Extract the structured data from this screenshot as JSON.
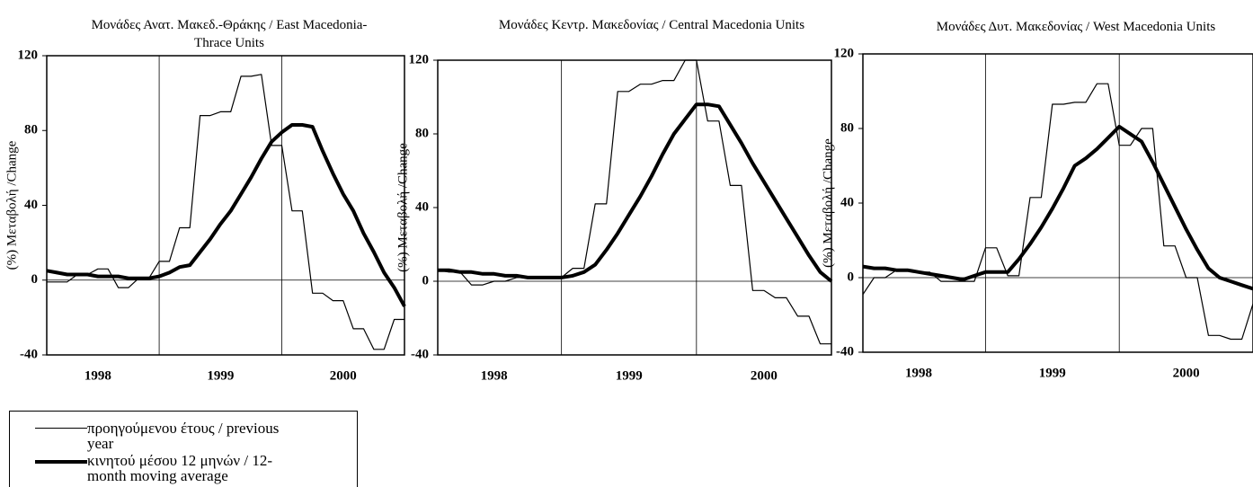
{
  "chart_data": [
    {
      "type": "line",
      "title": "Μονάδες Ανατ. Μακεδ.-Θράκης / East Macedonia-Thrace Units",
      "y_label": "(%) Μεταβολή /Change",
      "categories": [
        null,
        null,
        null,
        null,
        null,
        "1998",
        null,
        null,
        null,
        null,
        null,
        null,
        null,
        null,
        null,
        null,
        null,
        "1999",
        null,
        null,
        null,
        null,
        null,
        null,
        null,
        null,
        null,
        null,
        null,
        "2000",
        null,
        null,
        null,
        null,
        null,
        null
      ],
      "ylim": [
        -40,
        120
      ],
      "yticks": [
        -40,
        0,
        40,
        80,
        120
      ],
      "series": [
        {
          "name": "προηγούμενου έτους / previous year",
          "color": "#000000",
          "line_width": 1.2,
          "values": [
            -1,
            -1,
            -1,
            3,
            3,
            6,
            6,
            -4,
            -4,
            1,
            1,
            10,
            10,
            28,
            28,
            88,
            88,
            90,
            90,
            109,
            109,
            110,
            72,
            72,
            37,
            37,
            -7,
            -7,
            -11,
            -11,
            -26,
            -26,
            -37,
            -37,
            -21,
            -21
          ]
        },
        {
          "name": "κινητού μέσου 12 μηνών / 12-month moving average",
          "color": "#000000",
          "line_width": 4,
          "values": [
            5,
            4,
            3,
            3,
            3,
            2,
            2,
            2,
            1,
            1,
            1,
            2,
            4,
            7,
            8,
            15,
            22,
            30,
            37,
            46,
            55,
            65,
            74,
            79,
            83,
            83,
            82,
            69,
            57,
            46,
            37,
            25,
            15,
            4,
            -4,
            -14
          ]
        }
      ]
    },
    {
      "type": "line",
      "title": "Μονάδες Κεντρ. Μακεδονίας / Central Macedonia Units",
      "y_label": "(%) Μεταβολή /Change",
      "categories": [
        null,
        null,
        null,
        null,
        null,
        "1998",
        null,
        null,
        null,
        null,
        null,
        null,
        null,
        null,
        null,
        null,
        null,
        "1999",
        null,
        null,
        null,
        null,
        null,
        null,
        null,
        null,
        null,
        null,
        null,
        "2000",
        null,
        null,
        null,
        null,
        null,
        null
      ],
      "ylim": [
        -40,
        120
      ],
      "yticks": [
        -40,
        0,
        40,
        80,
        120
      ],
      "series": [
        {
          "color": "#000000",
          "line_width": 1.2,
          "values": [
            6,
            5,
            5,
            -2,
            -2,
            0,
            0,
            2,
            2,
            2,
            2,
            2,
            7,
            7,
            42,
            42,
            103,
            103,
            107,
            107,
            109,
            109,
            120,
            120,
            87,
            87,
            52,
            52,
            -5,
            -5,
            -9,
            -9,
            -19,
            -19,
            -34,
            -34
          ]
        },
        {
          "color": "#000000",
          "line_width": 4,
          "values": [
            6,
            6,
            5,
            5,
            4,
            4,
            3,
            3,
            2,
            2,
            2,
            2,
            3,
            5,
            9,
            17,
            26,
            36,
            46,
            57,
            69,
            80,
            88,
            96,
            96,
            95,
            85,
            75,
            64,
            54,
            44,
            34,
            24,
            14,
            5,
            0
          ]
        }
      ]
    },
    {
      "type": "line",
      "title": "Μονάδες Δυτ. Μακεδονίας / West Macedonia Units",
      "y_label": "(%) Μεταβολή /Change",
      "categories": [
        null,
        null,
        null,
        null,
        null,
        "1998",
        null,
        null,
        null,
        null,
        null,
        null,
        null,
        null,
        null,
        null,
        null,
        "1999",
        null,
        null,
        null,
        null,
        null,
        null,
        null,
        null,
        null,
        null,
        null,
        "2000",
        null,
        null,
        null,
        null,
        null,
        null
      ],
      "ylim": [
        -40,
        120
      ],
      "yticks": [
        -40,
        0,
        40,
        80,
        120
      ],
      "series": [
        {
          "color": "#000000",
          "line_width": 1.2,
          "values": [
            -9,
            0,
            0,
            4,
            4,
            3,
            3,
            -2,
            -2,
            -2,
            -2,
            16,
            16,
            1,
            1,
            43,
            43,
            93,
            93,
            94,
            94,
            104,
            104,
            71,
            71,
            80,
            80,
            17,
            17,
            0,
            0,
            -31,
            -31,
            -33,
            -33,
            -14
          ]
        },
        {
          "color": "#000000",
          "line_width": 4,
          "values": [
            6,
            5,
            5,
            4,
            4,
            3,
            2,
            1,
            0,
            -1,
            1,
            3,
            3,
            3,
            10,
            18,
            27,
            37,
            48,
            60,
            64,
            69,
            75,
            81,
            77,
            73,
            62,
            50,
            38,
            26,
            15,
            5,
            0,
            -2,
            -4,
            -6
          ]
        }
      ]
    }
  ]
}
